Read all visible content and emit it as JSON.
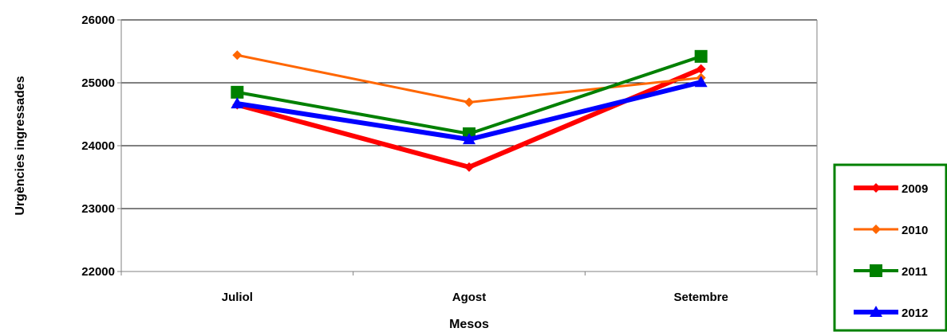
{
  "chart_data": {
    "type": "line",
    "categories": [
      "Juliol",
      "Agost",
      "Setembre"
    ],
    "xlabel": "Mesos",
    "ylabel": "Urgències ingressades",
    "ylim": [
      22000,
      26000
    ],
    "yticks": [
      "22000",
      "23000",
      "24000",
      "25000",
      "26000"
    ],
    "grid": "horizontal",
    "legend_position": "right",
    "series": [
      {
        "name": "2009",
        "values": [
          24650,
          23660,
          25220
        ],
        "color": "#ff0000",
        "marker": "diamond"
      },
      {
        "name": "2010",
        "values": [
          25440,
          24690,
          25080
        ],
        "color": "#ff6600",
        "marker": "diamond"
      },
      {
        "name": "2011",
        "values": [
          24850,
          24190,
          25420
        ],
        "color": "#008000",
        "marker": "square"
      },
      {
        "name": "2012",
        "values": [
          24670,
          24100,
          25010
        ],
        "color": "#0000ff",
        "marker": "triangle"
      }
    ],
    "legend_border_color": "#008000"
  }
}
